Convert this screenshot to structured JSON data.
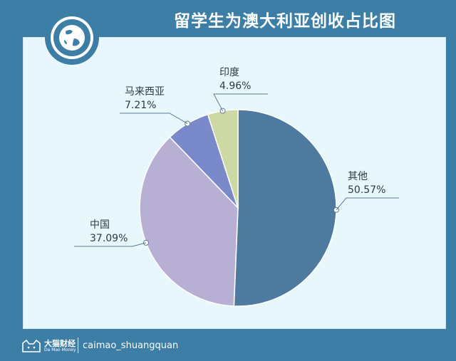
{
  "header": {
    "title": "留学生为澳大利亚创收占比图"
  },
  "footer": {
    "brand_name": "大猫财经",
    "brand_sub": "Da Mao Money",
    "handle": "caimao_shuangquan"
  },
  "colors": {
    "background": "#3c7ea6",
    "panel": "#e8f7fc",
    "leader": "#5a7a90"
  },
  "chart_data": {
    "type": "pie",
    "title": "留学生为澳大利亚创收占比图",
    "slices": [
      {
        "label": "其他",
        "value_label": "50.57%",
        "value": 50.57,
        "color": "#4e7aa0"
      },
      {
        "label": "中国",
        "value_label": "37.09%",
        "value": 37.09,
        "color": "#b8b0d4"
      },
      {
        "label": "马来西亚",
        "value_label": "7.21%",
        "value": 7.21,
        "color": "#7a89c9"
      },
      {
        "label": "印度",
        "value_label": "4.96%",
        "value": 4.96,
        "color": "#cdd8a4"
      }
    ]
  }
}
